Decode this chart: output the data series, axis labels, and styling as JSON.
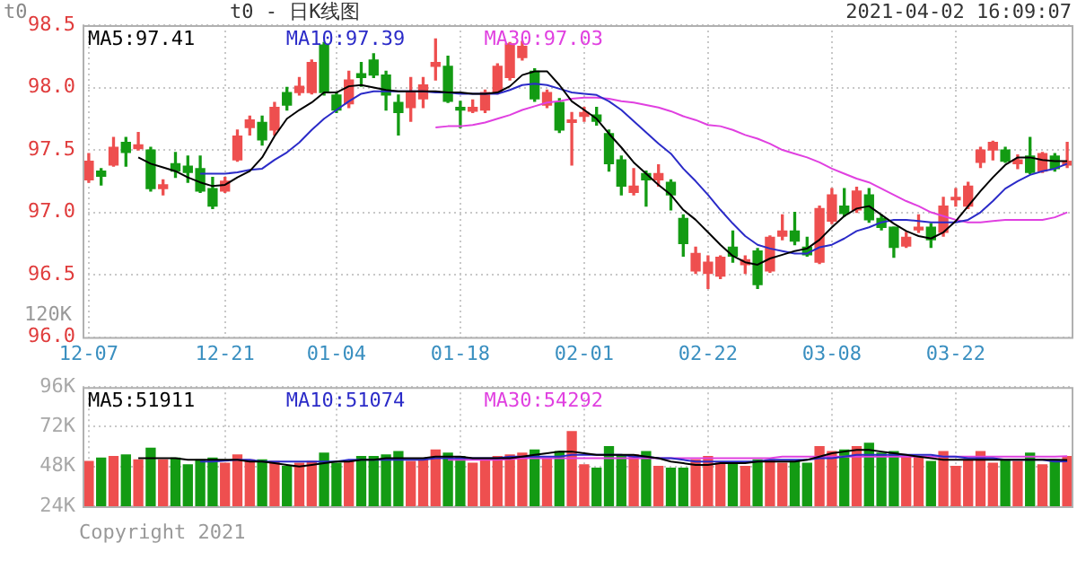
{
  "chart_data": [
    {
      "type": "candlestick",
      "title": "t0 - 日K线图",
      "subtitle": "2021-04-02 16:09:07",
      "ylabel": "t0",
      "categories": [
        "12-07",
        null,
        null,
        null,
        null,
        null,
        null,
        null,
        null,
        null,
        null,
        "12-21",
        null,
        null,
        null,
        null,
        null,
        null,
        null,
        null,
        "01-04",
        null,
        null,
        null,
        null,
        null,
        null,
        null,
        null,
        null,
        "01-18",
        null,
        null,
        null,
        null,
        null,
        null,
        null,
        null,
        null,
        "02-01",
        null,
        null,
        null,
        null,
        null,
        null,
        null,
        null,
        null,
        "02-22",
        null,
        null,
        null,
        null,
        null,
        null,
        null,
        null,
        null,
        "03-08",
        null,
        null,
        null,
        null,
        null,
        null,
        null,
        null,
        null,
        "03-22",
        null,
        null,
        null,
        null,
        null,
        null,
        null,
        null,
        null
      ],
      "ohlc": [
        [
          97.26,
          97.47,
          97.24,
          97.41
        ],
        [
          97.33,
          97.35,
          97.22,
          97.29
        ],
        [
          97.38,
          97.6,
          97.37,
          97.52
        ],
        [
          97.56,
          97.6,
          97.37,
          97.48
        ],
        [
          97.51,
          97.64,
          97.5,
          97.54
        ],
        [
          97.5,
          97.52,
          97.17,
          97.19
        ],
        [
          97.19,
          97.26,
          97.14,
          97.22
        ],
        [
          97.39,
          97.48,
          97.28,
          97.33
        ],
        [
          97.37,
          97.45,
          97.24,
          97.32
        ],
        [
          97.35,
          97.45,
          97.16,
          97.17
        ],
        [
          97.19,
          97.28,
          97.03,
          97.05
        ],
        [
          97.17,
          97.28,
          97.16,
          97.25
        ],
        [
          97.42,
          97.66,
          97.41,
          97.61
        ],
        [
          97.68,
          97.77,
          97.62,
          97.74
        ],
        [
          97.72,
          97.77,
          97.54,
          97.58
        ],
        [
          97.66,
          97.88,
          97.62,
          97.84
        ],
        [
          97.96,
          98.0,
          97.82,
          97.86
        ],
        [
          97.96,
          98.08,
          97.94,
          98.01
        ],
        [
          97.96,
          98.22,
          97.95,
          98.2
        ],
        [
          98.34,
          98.36,
          97.94,
          97.96
        ],
        [
          97.94,
          97.96,
          97.8,
          97.82
        ],
        [
          97.87,
          98.13,
          97.84,
          98.06
        ],
        [
          98.11,
          98.2,
          98.01,
          98.08
        ],
        [
          98.22,
          98.27,
          98.08,
          98.1
        ],
        [
          98.1,
          98.13,
          97.82,
          97.94
        ],
        [
          97.88,
          97.94,
          97.62,
          97.8
        ],
        [
          97.84,
          98.08,
          97.73,
          97.96
        ],
        [
          97.91,
          98.08,
          97.84,
          98.02
        ],
        [
          98.17,
          98.39,
          98.06,
          98.2
        ],
        [
          98.17,
          98.25,
          97.88,
          97.89
        ],
        [
          97.84,
          97.89,
          97.68,
          97.82
        ],
        [
          97.81,
          97.9,
          97.8,
          97.84
        ],
        [
          97.82,
          97.98,
          97.8,
          97.96
        ],
        [
          97.96,
          98.19,
          97.95,
          98.17
        ],
        [
          98.08,
          98.36,
          98.06,
          98.35
        ],
        [
          98.24,
          98.37,
          98.22,
          98.33
        ],
        [
          98.13,
          98.15,
          97.89,
          97.91
        ],
        [
          97.86,
          97.98,
          97.84,
          97.96
        ],
        [
          97.88,
          97.91,
          97.64,
          97.66
        ],
        [
          97.72,
          97.8,
          97.38,
          97.74
        ],
        [
          97.77,
          97.84,
          97.73,
          97.8
        ],
        [
          97.78,
          97.84,
          97.7,
          97.73
        ],
        [
          97.63,
          97.66,
          97.33,
          97.39
        ],
        [
          97.42,
          97.45,
          97.14,
          97.21
        ],
        [
          97.16,
          97.35,
          97.14,
          97.21
        ],
        [
          97.31,
          97.33,
          97.05,
          97.26
        ],
        [
          97.26,
          97.38,
          97.21,
          97.31
        ],
        [
          97.24,
          97.26,
          97.02,
          97.14
        ],
        [
          96.95,
          96.98,
          96.65,
          96.75
        ],
        [
          96.53,
          96.72,
          96.51,
          96.67
        ],
        [
          96.51,
          96.65,
          96.39,
          96.6
        ],
        [
          96.49,
          96.65,
          96.47,
          96.64
        ],
        [
          96.72,
          96.85,
          96.6,
          96.65
        ],
        [
          96.58,
          96.65,
          96.51,
          96.62
        ],
        [
          96.69,
          96.71,
          96.39,
          96.42
        ],
        [
          96.53,
          96.81,
          96.52,
          96.8
        ],
        [
          96.81,
          96.98,
          96.78,
          96.85
        ],
        [
          96.85,
          97.0,
          96.74,
          96.77
        ],
        [
          96.72,
          96.8,
          96.65,
          96.66
        ],
        [
          96.6,
          97.05,
          96.59,
          97.03
        ],
        [
          96.93,
          97.19,
          96.91,
          97.14
        ],
        [
          97.05,
          97.19,
          96.97,
          96.99
        ],
        [
          97.02,
          97.2,
          97.0,
          97.17
        ],
        [
          97.14,
          97.19,
          96.92,
          96.94
        ],
        [
          96.95,
          96.98,
          96.86,
          96.88
        ],
        [
          96.88,
          96.88,
          96.64,
          96.72
        ],
        [
          96.73,
          96.84,
          96.72,
          96.8
        ],
        [
          96.86,
          96.98,
          96.84,
          96.88
        ],
        [
          96.88,
          96.91,
          96.72,
          96.78
        ],
        [
          96.84,
          97.12,
          96.81,
          97.05
        ],
        [
          97.1,
          97.19,
          97.05,
          97.12
        ],
        [
          97.05,
          97.24,
          97.03,
          97.21
        ],
        [
          97.4,
          97.52,
          97.36,
          97.5
        ],
        [
          97.5,
          97.57,
          97.42,
          97.56
        ],
        [
          97.5,
          97.52,
          97.4,
          97.41
        ],
        [
          97.39,
          97.46,
          97.35,
          97.42
        ],
        [
          97.45,
          97.6,
          97.31,
          97.32
        ],
        [
          97.33,
          97.48,
          97.32,
          97.47
        ],
        [
          97.45,
          97.47,
          97.33,
          97.35
        ],
        [
          97.38,
          97.56,
          97.36,
          97.41
        ]
      ],
      "colors": [
        "#ee4f4f",
        "#139b13",
        "#ee4f4f",
        "#139b13",
        "#ee4f4f",
        "#139b13",
        "#ee4f4f",
        "#139b13",
        "#139b13",
        "#139b13",
        "#139b13",
        "#ee4f4f",
        "#ee4f4f",
        "#ee4f4f",
        "#139b13",
        "#ee4f4f",
        "#139b13",
        "#ee4f4f",
        "#ee4f4f",
        "#139b13",
        "#139b13",
        "#ee4f4f",
        "#139b13",
        "#139b13",
        "#139b13",
        "#139b13",
        "#ee4f4f",
        "#ee4f4f",
        "#ee4f4f",
        "#139b13",
        "#139b13",
        "#ee4f4f",
        "#ee4f4f",
        "#ee4f4f",
        "#ee4f4f",
        "#ee4f4f",
        "#139b13",
        "#ee4f4f",
        "#139b13",
        "#ee4f4f",
        "#ee4f4f",
        "#139b13",
        "#139b13",
        "#139b13",
        "#ee4f4f",
        "#139b13",
        "#ee4f4f",
        "#139b13",
        "#139b13",
        "#ee4f4f",
        "#ee4f4f",
        "#ee4f4f",
        "#139b13",
        "#ee4f4f",
        "#139b13",
        "#ee4f4f",
        "#ee4f4f",
        "#139b13",
        "#139b13",
        "#ee4f4f",
        "#ee4f4f",
        "#139b13",
        "#ee4f4f",
        "#139b13",
        "#139b13",
        "#139b13",
        "#ee4f4f",
        "#ee4f4f",
        "#139b13",
        "#ee4f4f",
        "#ee4f4f",
        "#ee4f4f",
        "#ee4f4f",
        "#ee4f4f",
        "#139b13",
        "#ee4f4f",
        "#139b13",
        "#ee4f4f",
        "#139b13",
        "#ee4f4f"
      ],
      "series": [
        {
          "name": "MA5:97.41",
          "type": "line",
          "color": "#000000",
          "values": [
            null,
            null,
            null,
            null,
            97.44,
            97.39,
            97.36,
            97.33,
            97.28,
            97.24,
            97.21,
            97.22,
            97.28,
            97.33,
            97.44,
            97.61,
            97.75,
            97.82,
            97.88,
            97.96,
            97.96,
            98.01,
            98.02,
            98.0,
            97.98,
            97.97,
            97.97,
            97.97,
            97.97,
            97.96,
            97.96,
            97.95,
            97.95,
            97.96,
            98.01,
            98.1,
            98.13,
            98.13,
            98.02,
            97.89,
            97.82,
            97.75,
            97.63,
            97.52,
            97.4,
            97.31,
            97.22,
            97.14,
            97.02,
            96.94,
            96.84,
            96.74,
            96.65,
            96.6,
            96.58,
            96.63,
            96.66,
            96.69,
            96.71,
            96.78,
            96.88,
            96.97,
            97.03,
            97.05,
            96.98,
            96.91,
            96.85,
            96.81,
            96.79,
            96.84,
            96.93,
            97.05,
            97.17,
            97.28,
            97.38,
            97.44,
            97.44,
            97.42,
            97.41,
            97.41
          ]
        },
        {
          "name": "MA10:97.39",
          "type": "line",
          "color": "#2b2bc8",
          "values": [
            null,
            null,
            null,
            null,
            null,
            null,
            null,
            null,
            null,
            97.31,
            97.31,
            97.31,
            97.32,
            97.34,
            97.35,
            97.42,
            97.48,
            97.56,
            97.66,
            97.75,
            97.82,
            97.89,
            97.95,
            97.97,
            97.97,
            97.97,
            97.97,
            97.97,
            97.96,
            97.96,
            97.95,
            97.95,
            97.95,
            97.95,
            97.98,
            98.02,
            98.03,
            98.02,
            97.99,
            97.96,
            97.95,
            97.94,
            97.89,
            97.82,
            97.73,
            97.64,
            97.55,
            97.47,
            97.35,
            97.25,
            97.14,
            97.02,
            96.91,
            96.81,
            96.74,
            96.71,
            96.69,
            96.67,
            96.67,
            96.72,
            96.74,
            96.79,
            96.85,
            96.88,
            96.92,
            96.94,
            96.94,
            96.93,
            96.92,
            96.92,
            96.92,
            96.94,
            97.0,
            97.09,
            97.19,
            97.25,
            97.3,
            97.33,
            97.35,
            97.39
          ]
        },
        {
          "name": "MA30:97.03",
          "type": "line",
          "color": "#e040e0",
          "values": [
            null,
            null,
            null,
            null,
            null,
            null,
            null,
            null,
            null,
            null,
            null,
            null,
            null,
            null,
            null,
            null,
            null,
            null,
            null,
            null,
            null,
            null,
            null,
            null,
            null,
            null,
            null,
            null,
            97.68,
            97.69,
            97.69,
            97.7,
            97.72,
            97.75,
            97.78,
            97.82,
            97.85,
            97.88,
            97.89,
            97.91,
            97.92,
            97.92,
            97.91,
            97.89,
            97.88,
            97.86,
            97.84,
            97.81,
            97.77,
            97.74,
            97.7,
            97.69,
            97.66,
            97.62,
            97.59,
            97.55,
            97.5,
            97.47,
            97.44,
            97.4,
            97.35,
            97.31,
            97.27,
            97.24,
            97.19,
            97.14,
            97.09,
            97.05,
            97.0,
            96.97,
            96.94,
            96.92,
            96.92,
            96.93,
            96.94,
            96.94,
            96.94,
            96.94,
            96.96,
            97.0
          ]
        }
      ],
      "ylim": [
        96.0,
        98.5
      ],
      "yticks": [
        {
          "value": 96.0,
          "label": "96.0"
        },
        {
          "value": 96.5,
          "label": "96.5"
        },
        {
          "value": 97.0,
          "label": "97.0"
        },
        {
          "value": 97.5,
          "label": "97.5"
        },
        {
          "value": 98.0,
          "label": "98.0"
        },
        {
          "value": 98.5,
          "label": "98.5"
        }
      ],
      "grid": true,
      "legend": "top left",
      "annotations": [
        "120K"
      ]
    },
    {
      "type": "bar",
      "categories": [
        null,
        null,
        null,
        null,
        null,
        null,
        null,
        null,
        null,
        null,
        null,
        null,
        null,
        null,
        null,
        null,
        null,
        null,
        null,
        null,
        null,
        null,
        null,
        null,
        null,
        null,
        null,
        null,
        null,
        null,
        null,
        null,
        null,
        null,
        null,
        null,
        null,
        null,
        null,
        null,
        null,
        null,
        null,
        null,
        null,
        null,
        null,
        null,
        null,
        null,
        null,
        null,
        null,
        null,
        null,
        null,
        null,
        null,
        null,
        null,
        null,
        null,
        null,
        null,
        null,
        null,
        null,
        null,
        null,
        null,
        null,
        null,
        null,
        null,
        null,
        null,
        null,
        null,
        null,
        null
      ],
      "values": [
        51000,
        53000,
        54000,
        55000,
        52000,
        59000,
        52000,
        53000,
        49000,
        52000,
        53000,
        50000,
        55000,
        52000,
        52000,
        51000,
        48000,
        50000,
        51000,
        56000,
        50000,
        51000,
        54000,
        54000,
        55000,
        57000,
        51000,
        52000,
        58000,
        56000,
        54000,
        50000,
        52000,
        54000,
        55000,
        56000,
        58000,
        53000,
        57000,
        69000,
        49000,
        47000,
        60000,
        55000,
        55000,
        57000,
        48000,
        47000,
        47000,
        52000,
        54000,
        50000,
        50000,
        48000,
        52000,
        52000,
        50000,
        51000,
        50000,
        60000,
        57000,
        58000,
        60000,
        62000,
        56000,
        57000,
        54000,
        54000,
        51000,
        57000,
        48000,
        52000,
        57000,
        50000,
        52000,
        51000,
        56000,
        49000,
        52000,
        54000
      ],
      "colors": [
        "#ee4f4f",
        "#139b13",
        "#ee4f4f",
        "#139b13",
        "#ee4f4f",
        "#139b13",
        "#ee4f4f",
        "#139b13",
        "#139b13",
        "#139b13",
        "#139b13",
        "#ee4f4f",
        "#ee4f4f",
        "#ee4f4f",
        "#139b13",
        "#ee4f4f",
        "#139b13",
        "#ee4f4f",
        "#ee4f4f",
        "#139b13",
        "#139b13",
        "#ee4f4f",
        "#139b13",
        "#139b13",
        "#139b13",
        "#139b13",
        "#ee4f4f",
        "#ee4f4f",
        "#ee4f4f",
        "#139b13",
        "#139b13",
        "#ee4f4f",
        "#ee4f4f",
        "#ee4f4f",
        "#ee4f4f",
        "#ee4f4f",
        "#139b13",
        "#ee4f4f",
        "#139b13",
        "#ee4f4f",
        "#ee4f4f",
        "#139b13",
        "#139b13",
        "#139b13",
        "#ee4f4f",
        "#139b13",
        "#ee4f4f",
        "#139b13",
        "#139b13",
        "#ee4f4f",
        "#ee4f4f",
        "#ee4f4f",
        "#139b13",
        "#ee4f4f",
        "#139b13",
        "#ee4f4f",
        "#ee4f4f",
        "#139b13",
        "#139b13",
        "#ee4f4f",
        "#ee4f4f",
        "#139b13",
        "#ee4f4f",
        "#139b13",
        "#139b13",
        "#139b13",
        "#ee4f4f",
        "#ee4f4f",
        "#139b13",
        "#ee4f4f",
        "#ee4f4f",
        "#ee4f4f",
        "#ee4f4f",
        "#ee4f4f",
        "#139b13",
        "#ee4f4f",
        "#139b13",
        "#ee4f4f",
        "#139b13",
        "#ee4f4f"
      ],
      "series": [
        {
          "name": "MA5:51911",
          "type": "line",
          "color": "#000000",
          "values": [
            null,
            null,
            null,
            null,
            53000,
            53000,
            53000,
            53000,
            52000,
            52000,
            52000,
            52000,
            52000,
            51000,
            51000,
            50000,
            49000,
            48000,
            49000,
            50000,
            51000,
            51000,
            52000,
            52000,
            53000,
            53000,
            53000,
            53000,
            54000,
            54000,
            54000,
            53000,
            53000,
            53000,
            53000,
            54000,
            55000,
            56000,
            57000,
            57000,
            56000,
            55000,
            55000,
            55000,
            55000,
            54000,
            53000,
            51000,
            50000,
            49000,
            49000,
            50000,
            50000,
            50000,
            51000,
            51000,
            51000,
            51000,
            52000,
            54000,
            56000,
            57000,
            58000,
            58000,
            57000,
            56000,
            55000,
            54000,
            53000,
            52000,
            52000,
            52000,
            52000,
            52000,
            52000,
            52000,
            52000,
            52000,
            52000,
            51911
          ]
        },
        {
          "name": "MA10:51074",
          "type": "line",
          "color": "#2b2bc8",
          "values": [
            null,
            null,
            null,
            null,
            null,
            null,
            null,
            null,
            null,
            51000,
            51000,
            51500,
            52000,
            52000,
            51000,
            51000,
            51000,
            51000,
            51000,
            51000,
            51000,
            52000,
            52000,
            52000,
            52000,
            52000,
            52000,
            52000,
            53000,
            53000,
            53000,
            53000,
            53000,
            53000,
            54000,
            54000,
            54000,
            54000,
            54000,
            55000,
            55000,
            55000,
            55000,
            55000,
            54000,
            54000,
            53000,
            53000,
            52000,
            51000,
            51000,
            51000,
            51000,
            51000,
            51000,
            52000,
            52000,
            52000,
            52000,
            53000,
            53000,
            54000,
            55000,
            55000,
            55000,
            55000,
            55000,
            55000,
            55000,
            54000,
            54000,
            53000,
            53000,
            53000,
            52000,
            52000,
            52000,
            52000,
            51000,
            51074
          ]
        },
        {
          "name": "MA30:54292",
          "type": "line",
          "color": "#e040e0",
          "values": [
            null,
            null,
            null,
            null,
            null,
            null,
            null,
            null,
            null,
            null,
            null,
            null,
            null,
            null,
            null,
            null,
            null,
            null,
            null,
            null,
            null,
            null,
            null,
            null,
            null,
            null,
            null,
            null,
            null,
            52000,
            52000,
            52000,
            52000,
            52000,
            52500,
            53000,
            53000,
            53000,
            53000,
            53000,
            53000,
            53000,
            53000,
            53000,
            53000,
            53000,
            53000,
            53000,
            53000,
            53000,
            53000,
            53000,
            53000,
            53000,
            53000,
            53000,
            54000,
            54000,
            54000,
            54000,
            54000,
            54000,
            54000,
            54000,
            54000,
            54000,
            54000,
            54000,
            54000,
            54000,
            54000,
            54000,
            54000,
            54000,
            54000,
            54000,
            54000,
            54000,
            54000,
            54292
          ]
        }
      ],
      "ylim": [
        24000,
        96000
      ],
      "yticks": [
        {
          "value": 24000,
          "label": "24K"
        },
        {
          "value": 48000,
          "label": "48K"
        },
        {
          "value": 72000,
          "label": "72K"
        },
        {
          "value": 96000,
          "label": "96K"
        }
      ],
      "tick_labels": "y",
      "grid": true,
      "legend": "top left",
      "annotations": [
        "Copyright 2021"
      ]
    }
  ]
}
